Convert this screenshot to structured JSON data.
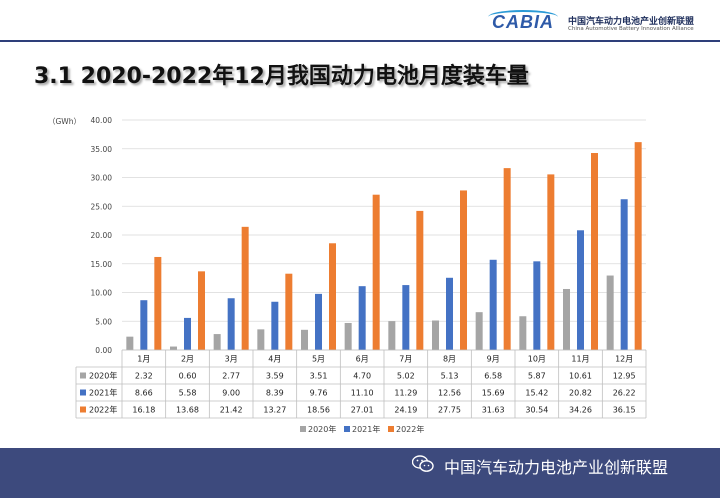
{
  "header": {
    "logo_text": "CABIA",
    "org_name_cn": "中国汽车动力电池产业创新联盟",
    "org_name_en": "China Automotive Battery Innovation Alliance"
  },
  "page_title": "3.1  2020-2022年12月我国动力电池月度装车量",
  "footer": {
    "text": "中国汽车动力电池产业创新联盟"
  },
  "colors": {
    "series_2020": "#a5a5a5",
    "series_2021": "#4472c4",
    "series_2022": "#ed7d31",
    "footer_bg": "#3d4a7d"
  },
  "chart_data": {
    "type": "bar",
    "unit_label": "（GWh）",
    "ylim": [
      0,
      40
    ],
    "ytick_step": 5,
    "ytick_labels": [
      "0.00",
      "5.00",
      "10.00",
      "15.00",
      "20.00",
      "25.00",
      "30.00",
      "35.00",
      "40.00"
    ],
    "grid": true,
    "legend_position": "bottom",
    "categories": [
      "1月",
      "2月",
      "3月",
      "4月",
      "5月",
      "6月",
      "7月",
      "8月",
      "9月",
      "10月",
      "11月",
      "12月"
    ],
    "series": [
      {
        "name": "2020年",
        "values": [
          2.32,
          0.6,
          2.77,
          3.59,
          3.51,
          4.7,
          5.02,
          5.13,
          6.58,
          5.87,
          10.61,
          12.95
        ],
        "labels": [
          "2.32",
          "0.60",
          "2.77",
          "3.59",
          "3.51",
          "4.70",
          "5.02",
          "5.13",
          "6.58",
          "5.87",
          "10.61",
          "12.95"
        ]
      },
      {
        "name": "2021年",
        "values": [
          8.66,
          5.58,
          9.0,
          8.39,
          9.76,
          11.1,
          11.29,
          12.56,
          15.69,
          15.42,
          20.82,
          26.22
        ],
        "labels": [
          "8.66",
          "5.58",
          "9.00",
          "8.39",
          "9.76",
          "11.10",
          "11.29",
          "12.56",
          "15.69",
          "15.42",
          "20.82",
          "26.22"
        ]
      },
      {
        "name": "2022年",
        "values": [
          16.18,
          13.68,
          21.42,
          13.27,
          18.56,
          27.01,
          24.19,
          27.75,
          31.63,
          30.54,
          34.26,
          36.15
        ],
        "labels": [
          "16.18",
          "13.68",
          "21.42",
          "13.27",
          "18.56",
          "27.01",
          "24.19",
          "27.75",
          "31.63",
          "30.54",
          "34.26",
          "36.15"
        ]
      }
    ]
  }
}
